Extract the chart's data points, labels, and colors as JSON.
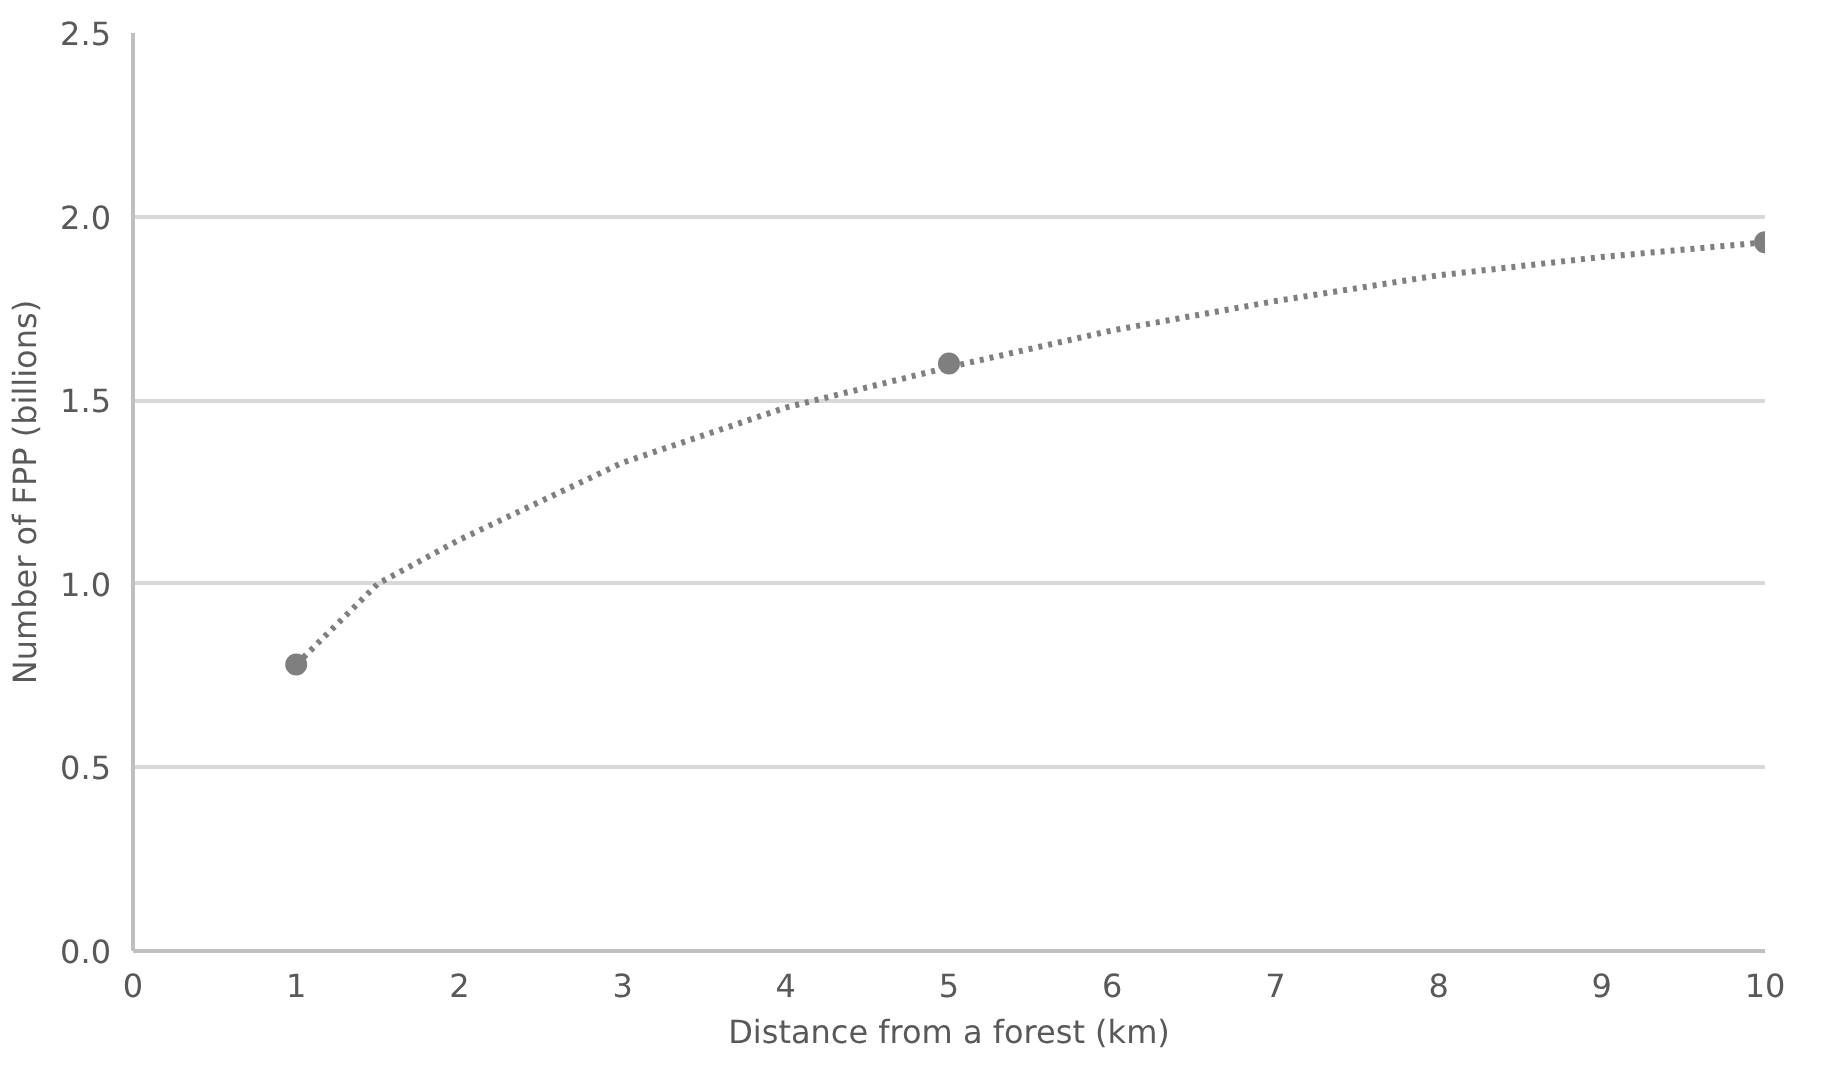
{
  "chart_data": {
    "type": "scatter",
    "xlabel": "Distance from a forest (km)",
    "ylabel": "Number of FPP (billions)",
    "x": [
      1,
      5,
      10
    ],
    "series": [
      {
        "color": "#7f7f7f",
        "values": [
          0.78,
          1.6,
          1.93
        ],
        "marker": "circle"
      },
      {
        "type": "line",
        "color": "#7f7f7f",
        "x": [
          1,
          1.5,
          2,
          3,
          4,
          5,
          6,
          7,
          8,
          9,
          10
        ],
        "values": [
          0.78,
          1.0,
          1.12,
          1.33,
          1.48,
          1.59,
          1.69,
          1.77,
          1.84,
          1.89,
          1.93
        ],
        "line_style": "dotted",
        "marker": "none"
      }
    ],
    "xlim": [
      0,
      10
    ],
    "xticks": [
      0,
      1,
      2,
      3,
      4,
      5,
      6,
      7,
      8,
      9,
      10
    ],
    "ylim": [
      0,
      2.5
    ],
    "yticks": [
      {
        "value": 0,
        "label": "0.0"
      },
      {
        "value": 0.5,
        "label": "0.5"
      },
      {
        "value": 1,
        "label": "1.0"
      },
      {
        "value": 1.5,
        "label": "1.5"
      },
      {
        "value": 2,
        "label": "2.0"
      },
      {
        "value": 2.5,
        "label": "2.5"
      }
    ],
    "grid": "y"
  }
}
